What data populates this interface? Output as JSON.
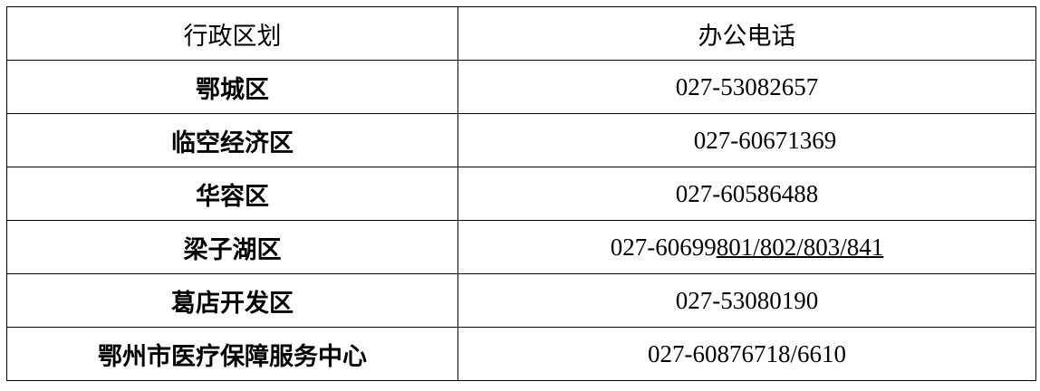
{
  "table": {
    "headers": [
      "行政区划",
      "办公电话"
    ],
    "rows": [
      {
        "district": "鄂城区",
        "phone": "027-53082657"
      },
      {
        "district": "临空经济区",
        "phone": "027-60671369"
      },
      {
        "district": "华容区",
        "phone": "027-60586488"
      },
      {
        "district": "梁子湖区",
        "phone_prefix": "027-60699",
        "phone_underlined": "801/802/803/841"
      },
      {
        "district": "葛店开发区",
        "phone": "027-53080190"
      },
      {
        "district": "鄂州市医疗保障服务中心",
        "phone": "027-60876718/6610"
      }
    ]
  }
}
